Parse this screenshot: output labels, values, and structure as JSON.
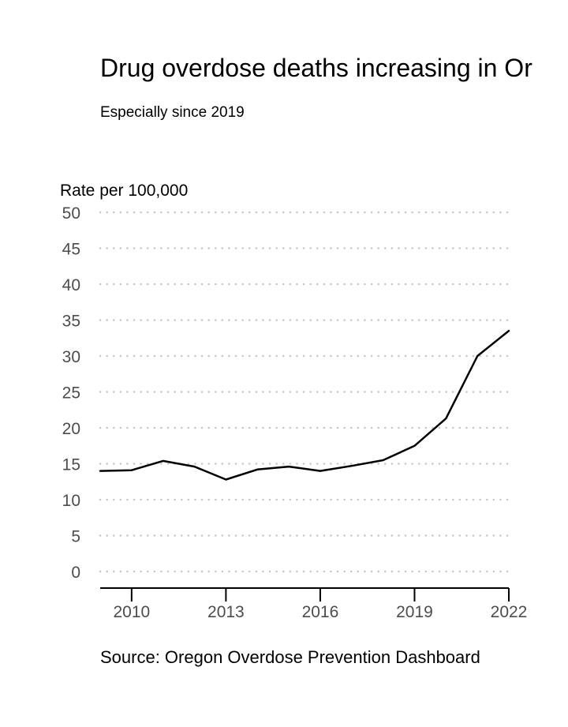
{
  "chart_data": {
    "type": "line",
    "title": "Drug overdose deaths increasing in Or",
    "subtitle": "Especially since 2019",
    "ylabel": "Rate per 100,000",
    "xlabel": "",
    "source": "Source: Oregon Overdose Prevention Dashboard",
    "ylim": [
      0,
      50
    ],
    "xlim": [
      2009,
      2022
    ],
    "yticks": [
      "0",
      "5",
      "10",
      "15",
      "20",
      "25",
      "30",
      "35",
      "40",
      "45",
      "50"
    ],
    "xticks": [
      "2010",
      "2013",
      "2016",
      "2019",
      "2022"
    ],
    "grid": true,
    "series": [
      {
        "x": [
          2009,
          2010,
          2011,
          2012,
          2013,
          2014,
          2015,
          2016,
          2017,
          2018,
          2019,
          2020,
          2021,
          2022
        ],
        "values": [
          14.0,
          14.1,
          15.4,
          14.6,
          12.8,
          14.2,
          14.6,
          14.0,
          14.7,
          15.5,
          17.5,
          21.3,
          30.0,
          33.5
        ],
        "color": "#000000"
      }
    ]
  }
}
